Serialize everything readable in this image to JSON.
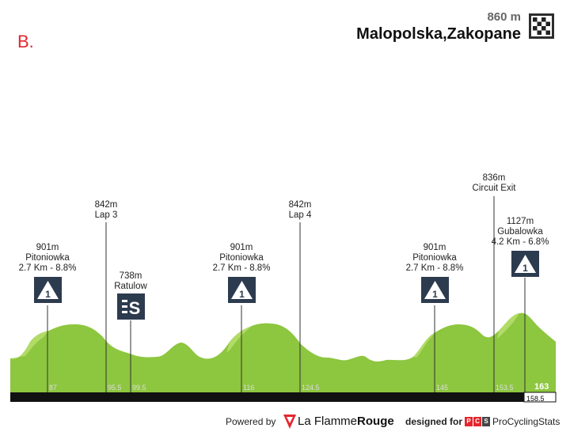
{
  "stage_letter": "B.",
  "finish": {
    "altitude": "860 m",
    "name": "Malopolska,Zakopane",
    "icon": "checkered-flag-icon"
  },
  "markers": [
    {
      "id": "pitoniowka-1",
      "alt": "901m",
      "name": "Pitoniowka",
      "detail": "2.7 Km - 8.8%",
      "icon": "climb-cat1-icon"
    },
    {
      "id": "lap3",
      "alt": "842m",
      "name": "Lap 3",
      "detail": "",
      "icon": ""
    },
    {
      "id": "ratulow",
      "alt": "738m",
      "name": "Ratulow",
      "detail": "",
      "icon": "sprint-icon"
    },
    {
      "id": "pitoniowka-2",
      "alt": "901m",
      "name": "Pitoniowka",
      "detail": "2.7 Km - 8.8%",
      "icon": "climb-cat1-icon"
    },
    {
      "id": "lap4",
      "alt": "842m",
      "name": "Lap 4",
      "detail": "",
      "icon": ""
    },
    {
      "id": "pitoniowka-3",
      "alt": "901m",
      "name": "Pitoniowka",
      "detail": "2.7 Km - 8.8%",
      "icon": "climb-cat1-icon"
    },
    {
      "id": "circuit-exit",
      "alt": "836m",
      "name": "Circuit Exit",
      "detail": "",
      "icon": ""
    },
    {
      "id": "gubalowka",
      "alt": "1127m",
      "name": "Gubalowka",
      "detail": "4.2 Km - 6.8%",
      "icon": "climb-cat1-icon"
    }
  ],
  "climb_icon_text": "1",
  "km_ticks": [
    "87",
    "95.5",
    "99.5",
    "116",
    "124.5",
    "145",
    "153.5"
  ],
  "km_final": "163",
  "km_total": "158.5",
  "colors": {
    "profile_fill": "#8dc63f",
    "profile_highlight": "#b5dd6a",
    "baseline": "#111111",
    "marker_icon_bg": "#2d3b4f",
    "accent": "#e3262f"
  },
  "footer": {
    "powered_by": "Powered by",
    "flamme_part1": "La Flamme",
    "flamme_part2": "Rouge",
    "designed_for": "designed for",
    "pcs_letters": [
      "P",
      "C",
      "S"
    ],
    "procyclingstats": "ProCyclingStats"
  }
}
